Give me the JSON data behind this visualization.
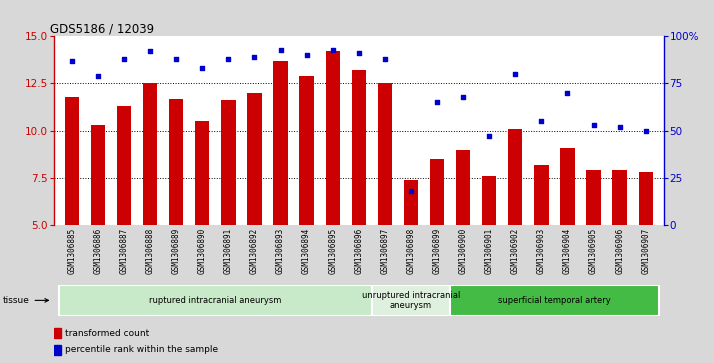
{
  "title": "GDS5186 / 12039",
  "samples": [
    "GSM1306885",
    "GSM1306886",
    "GSM1306887",
    "GSM1306888",
    "GSM1306889",
    "GSM1306890",
    "GSM1306891",
    "GSM1306892",
    "GSM1306893",
    "GSM1306894",
    "GSM1306895",
    "GSM1306896",
    "GSM1306897",
    "GSM1306898",
    "GSM1306899",
    "GSM1306900",
    "GSM1306901",
    "GSM1306902",
    "GSM1306903",
    "GSM1306904",
    "GSM1306905",
    "GSM1306906",
    "GSM1306907"
  ],
  "transformed_count": [
    11.8,
    10.3,
    11.3,
    12.5,
    11.7,
    10.5,
    11.6,
    12.0,
    13.7,
    12.9,
    14.2,
    13.2,
    12.5,
    7.4,
    8.5,
    9.0,
    7.6,
    10.1,
    8.2,
    9.1,
    7.9,
    7.9,
    7.8
  ],
  "percentile_rank": [
    87,
    79,
    88,
    92,
    88,
    83,
    88,
    89,
    93,
    90,
    93,
    91,
    88,
    18,
    65,
    68,
    47,
    80,
    55,
    70,
    53,
    52,
    50
  ],
  "bar_color": "#cc0000",
  "dot_color": "#0000cc",
  "ylim_left": [
    5,
    15
  ],
  "ylim_right": [
    0,
    100
  ],
  "yticks_left": [
    5,
    7.5,
    10,
    12.5,
    15
  ],
  "yticks_right": [
    0,
    25,
    50,
    75,
    100
  ],
  "ytick_labels_right": [
    "0",
    "25",
    "50",
    "75",
    "100%"
  ],
  "groups": [
    {
      "label": "ruptured intracranial aneurysm",
      "start": 0,
      "end": 12,
      "color": "#c8eac8"
    },
    {
      "label": "unruptured intracranial\naneurysm",
      "start": 12,
      "end": 15,
      "color": "#dff0df"
    },
    {
      "label": "superficial temporal artery",
      "start": 15,
      "end": 23,
      "color": "#44bb44"
    }
  ],
  "tissue_label": "tissue",
  "legend_bar_label": "transformed count",
  "legend_dot_label": "percentile rank within the sample",
  "bg_color": "#d8d8d8",
  "plot_bg_color": "#ffffff",
  "xtick_bg": "#d0d0d0"
}
